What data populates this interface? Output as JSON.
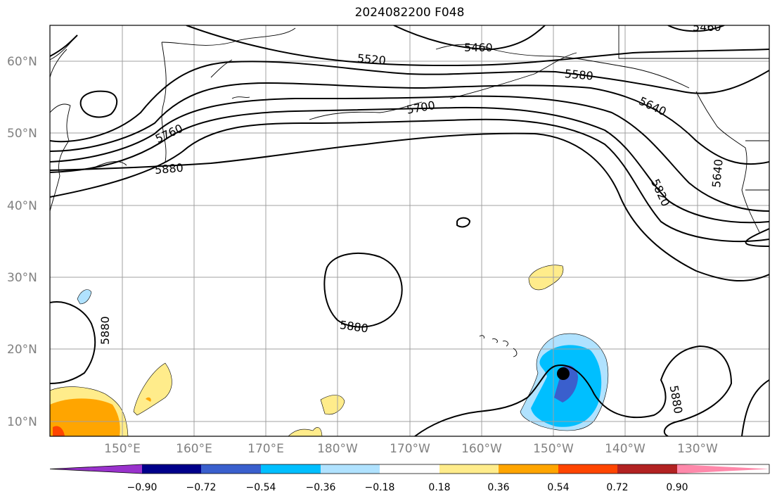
{
  "title": "2024082200 F048",
  "lat_labels": [
    "60°N",
    "50°N",
    "40°N",
    "30°N",
    "20°N",
    "10°N"
  ],
  "lon_labels": [
    "150°E",
    "160°E",
    "170°E",
    "180°W",
    "170°W",
    "160°W",
    "150°W",
    "140°W",
    "130°W"
  ],
  "contour_labels": [
    "5460",
    "5520",
    "5460",
    "5580",
    "5700",
    "5640",
    "5760",
    "5880",
    "5820",
    "5640",
    "5880",
    "5880",
    "5880"
  ],
  "colorbar": {
    "ticks": [
      "−0.90",
      "−0.72",
      "−0.54",
      "−0.36",
      "−0.18",
      "0.18",
      "0.36",
      "0.54",
      "0.72",
      "0.90"
    ],
    "colors": [
      "#9932CC",
      "#00008B",
      "#3A5FCD",
      "#00BFFF",
      "#B0E2FF",
      "#FFFFFF",
      "#FFEC8B",
      "#FFA500",
      "#FF4500",
      "#B22222",
      "#FF88AA"
    ]
  },
  "storm_marker": "storm-center"
}
